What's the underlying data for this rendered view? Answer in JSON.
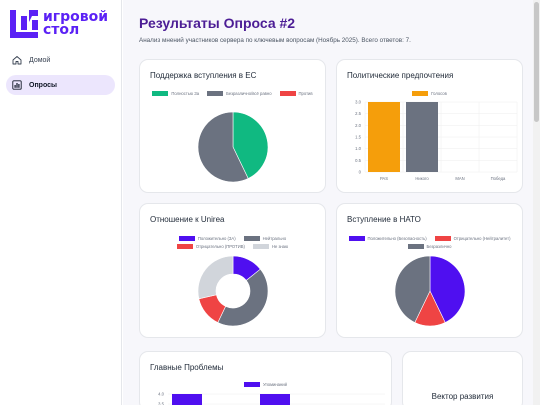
{
  "app": {
    "logo_line1": "игровой",
    "logo_line2": "стол"
  },
  "sidebar": {
    "items": [
      {
        "label": "Домой",
        "icon": "home-icon"
      },
      {
        "label": "Опросы",
        "icon": "chart-icon",
        "active": true
      }
    ]
  },
  "page": {
    "title": "Результаты Опроса #2",
    "subtitle": "Анализ мнений участников сервера по ключевым вопросам (Ноябрь 2025). Всего ответов: 7."
  },
  "colors": {
    "accent": "#5b21f5",
    "green": "#10b981",
    "gray": "#6b7280",
    "red": "#ef4444",
    "orange": "#f59e0b",
    "light_gray": "#d1d5db"
  },
  "chart_data": [
    {
      "type": "pie",
      "title": "Поддержка вступления в ЕС",
      "labels": [
        "Полностью За",
        "Безразлично/всё равно",
        "Против"
      ],
      "values": [
        3,
        4,
        0
      ],
      "colors": [
        "#10b981",
        "#6b7280",
        "#ef4444"
      ],
      "legend": "top"
    },
    {
      "type": "bar",
      "title": "Политические предпочтения",
      "categories": [
        "PAS",
        "Никого",
        "MAN",
        "Победа"
      ],
      "series": [
        {
          "name": "Голосов",
          "values": [
            3,
            3,
            0,
            0
          ],
          "colors": [
            "#f59e0b",
            "#6b7280",
            "#6b7280",
            "#6b7280"
          ]
        }
      ],
      "ylim": [
        0,
        3
      ],
      "yticks": [
        "0",
        "0.5",
        "1.0",
        "1.5",
        "2.0",
        "2.5",
        "3.0"
      ],
      "grid": true,
      "legend": "top"
    },
    {
      "type": "pie",
      "donut": true,
      "title": "Отношение к Unirea",
      "labels": [
        "Положительно (ЗА)",
        "Нейтрально",
        "Отрицательно (ПРОТИВ)",
        "Не знаю"
      ],
      "values": [
        1,
        3,
        1,
        2
      ],
      "colors": [
        "#4f0ff0",
        "#6b7280",
        "#ef4444",
        "#d1d5db"
      ],
      "legend": "top"
    },
    {
      "type": "pie",
      "title": "Вступление в НАТО",
      "labels": [
        "Положительно (Безопасность)",
        "Отрицательно (Нейтралитет)",
        "Безразлично"
      ],
      "values": [
        3,
        1,
        3
      ],
      "colors": [
        "#4f0ff0",
        "#ef4444",
        "#6b7280"
      ],
      "legend": "top"
    },
    {
      "type": "bar",
      "title": "Главные Проблемы",
      "series": [
        {
          "name": "Упоминаний",
          "values": [
            4,
            4
          ],
          "colors": [
            "#4f0ff0",
            "#4f0ff0"
          ]
        }
      ],
      "yticks": [
        "4.0",
        "3.5"
      ],
      "legend": "top"
    }
  ],
  "cards": {
    "vector_title": "Вектор развития"
  }
}
